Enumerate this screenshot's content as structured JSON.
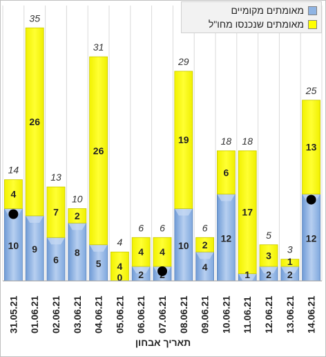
{
  "chart_data": {
    "type": "bar",
    "stacked": true,
    "xlabel": "תאריך אבחון",
    "ylabel": "",
    "categories": [
      "31.05.21",
      "01.06.21",
      "02.06.21",
      "03.06.21",
      "04.06.21",
      "05.06.21",
      "06.06.21",
      "07.06.21",
      "08.06.21",
      "09.06.21",
      "10.06.21",
      "11.06.21",
      "12.06.21",
      "13.06.21",
      "14.06.21"
    ],
    "series": [
      {
        "name": "מאומתים מקומיים",
        "color": "#8fb4e3",
        "values": [
          10,
          9,
          6,
          8,
          5,
          0,
          2,
          2,
          10,
          4,
          12,
          1,
          2,
          2,
          12
        ]
      },
      {
        "name": "מאומתים שנכנסו מחו\"ל",
        "color": "#ffff00",
        "values": [
          4,
          26,
          7,
          2,
          26,
          4,
          4,
          4,
          19,
          2,
          6,
          17,
          3,
          1,
          13
        ]
      }
    ],
    "totals": [
      14,
      35,
      13,
      10,
      31,
      4,
      6,
      6,
      29,
      6,
      18,
      18,
      5,
      3,
      25
    ],
    "markers_on_categories": [
      "31.05.21",
      "07.06.21",
      "14.06.21"
    ],
    "ylim": [
      0,
      36
    ],
    "grid": true,
    "legend": "top-right"
  }
}
